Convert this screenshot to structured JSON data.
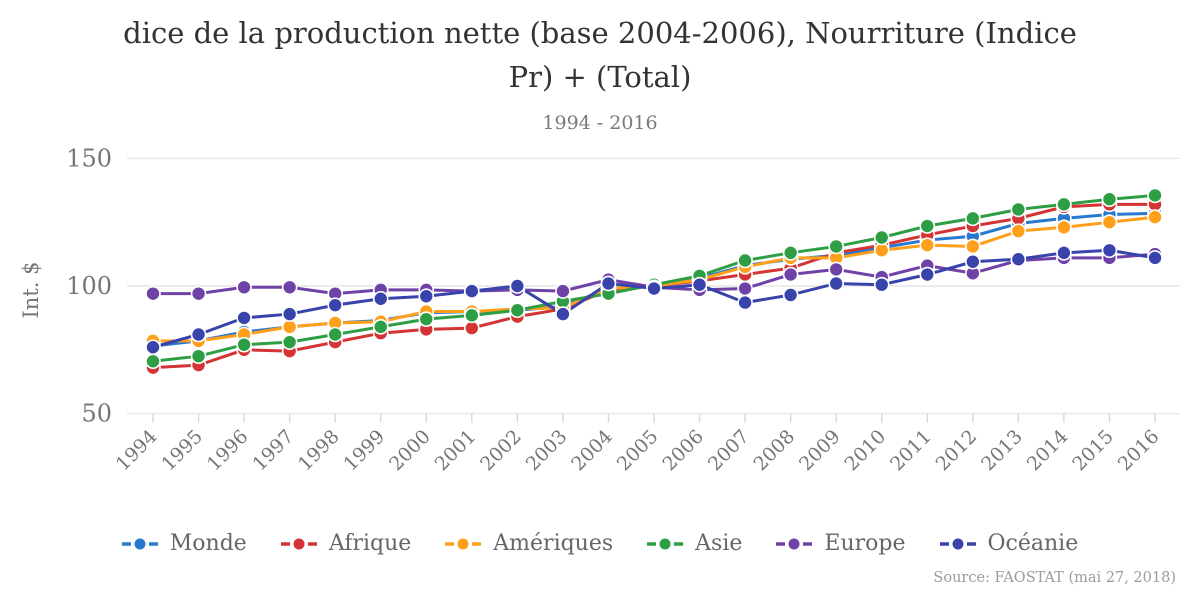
{
  "title": {
    "line1": "dice de la production nette (base 2004-2006), Nourriture (Indice",
    "line2": "Pr) + (Total)",
    "subtitle": "1994 - 2016"
  },
  "source": "Source: FAOSTAT (mai 27, 2018)",
  "chart_data": {
    "type": "line",
    "title": "Indice de la production nette (base 2004-2006), Nourriture (Indice Pr) + (Total)",
    "subtitle": "1994 - 2016",
    "ylabel": "Int. $",
    "xlabel": "",
    "yticks": [
      50,
      100,
      150
    ],
    "ylim": [
      40,
      155
    ],
    "grid": true,
    "legend_position": "bottom",
    "marker_style": "dash-dot-dash",
    "x": [
      1994,
      1995,
      1996,
      1997,
      1998,
      1999,
      2000,
      2001,
      2002,
      2003,
      2004,
      2005,
      2006,
      2007,
      2008,
      2009,
      2010,
      2011,
      2012,
      2013,
      2014,
      2015,
      2016
    ],
    "series": [
      {
        "name": "Monde",
        "color": "#2878d0",
        "values": [
          76.5,
          78.5,
          82,
          84,
          85.5,
          86.5,
          89.5,
          90,
          90.5,
          92,
          99,
          100,
          103,
          108,
          110.5,
          112,
          115,
          118,
          119.5,
          124.5,
          126.5,
          128,
          128.5
        ]
      },
      {
        "name": "Afrique",
        "color": "#d43434",
        "values": [
          68,
          69,
          75,
          74.5,
          78,
          81.5,
          83,
          83.5,
          88,
          91,
          98.5,
          100,
          102,
          104.5,
          107,
          113,
          116,
          120,
          123.5,
          126.5,
          131,
          132,
          132
        ]
      },
      {
        "name": "Amériques",
        "color": "#ff9f1a",
        "values": [
          78.5,
          78.5,
          81,
          84,
          85.5,
          86,
          90,
          90,
          91,
          91.5,
          99,
          100,
          102.5,
          107.5,
          111,
          111,
          114,
          116,
          115.5,
          121.5,
          123,
          125,
          127
        ]
      },
      {
        "name": "Asie",
        "color": "#2e9e44",
        "values": [
          70.5,
          72.5,
          77,
          78,
          81,
          84,
          87,
          88.5,
          90.5,
          94,
          97,
          100.5,
          104,
          110,
          113,
          115.5,
          119,
          123.5,
          126.5,
          130,
          132,
          134,
          135.5
        ]
      },
      {
        "name": "Europe",
        "color": "#6f42a8",
        "values": [
          97,
          97,
          99.5,
          99.5,
          97,
          98.5,
          98.5,
          98,
          98.5,
          98,
          102.5,
          99.5,
          98.5,
          99,
          104.5,
          106.5,
          103.5,
          108,
          105,
          110,
          111,
          111,
          112.5
        ]
      },
      {
        "name": "Océanie",
        "color": "#3844ab",
        "values": [
          76,
          81,
          87.5,
          89,
          92.5,
          95,
          96,
          98,
          100,
          89,
          101,
          99,
          100.5,
          93.5,
          96.5,
          101,
          100.5,
          104.5,
          109.5,
          110.5,
          113,
          114,
          111
        ]
      }
    ]
  }
}
